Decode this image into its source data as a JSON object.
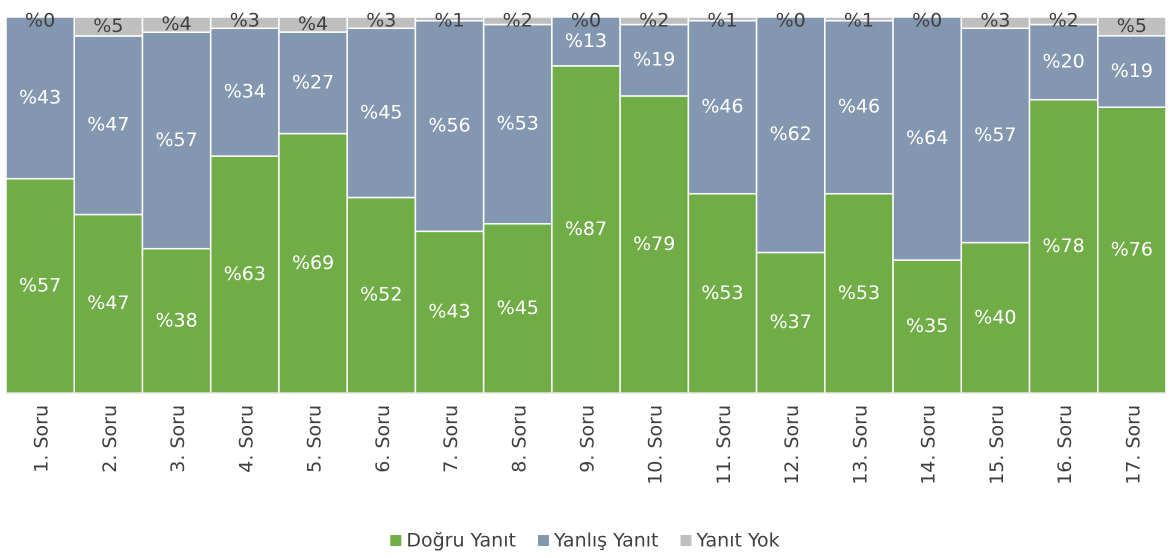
{
  "chart_data": {
    "type": "stacked-bar",
    "stacking": "percent",
    "categories": [
      "1. Soru",
      "2. Soru",
      "3. Soru",
      "4. Soru",
      "5. Soru",
      "6. Soru",
      "7. Soru",
      "8. Soru",
      "9. Soru",
      "10. Soru",
      "11. Soru",
      "12. Soru",
      "13. Soru",
      "14. Soru",
      "15. Soru",
      "16. Soru",
      "17. Soru"
    ],
    "ylim": [
      0,
      100
    ],
    "legend": "bottom",
    "series": [
      {
        "name": "Doğru Yanıt",
        "color": "#70ad47",
        "label_color": "#ffffff",
        "values": [
          57,
          47,
          38,
          63,
          69,
          52,
          43,
          45,
          87,
          79,
          53,
          37,
          53,
          35,
          40,
          78,
          76
        ],
        "value_labels": [
          "%57",
          "%47",
          "%38",
          "%63",
          "%69",
          "%52",
          "%43",
          "%45",
          "%87",
          "%79",
          "%53",
          "%37",
          "%53",
          "%35",
          "%40",
          "%78",
          "%76"
        ]
      },
      {
        "name": "Yanlış Yanıt",
        "color": "#8497b0",
        "label_color": "#ffffff",
        "values": [
          43,
          47,
          57,
          34,
          27,
          45,
          56,
          53,
          13,
          19,
          46,
          62,
          46,
          64,
          57,
          20,
          19
        ],
        "value_labels": [
          "%43",
          "%47",
          "%57",
          "%34",
          "%27",
          "%45",
          "%56",
          "%53",
          "%13",
          "%19",
          "%46",
          "%62",
          "%46",
          "%64",
          "%57",
          "%20",
          "%19"
        ]
      },
      {
        "name": "Yanıt Yok",
        "color": "#bfbfbf",
        "label_color": "#404040",
        "values": [
          0,
          5,
          4,
          3,
          4,
          3,
          1,
          2,
          0,
          2,
          1,
          0,
          1,
          0,
          3,
          2,
          5
        ],
        "value_labels": [
          "%0",
          "%5",
          "%4",
          "%3",
          "%4",
          "%3",
          "%1",
          "%2",
          "%0",
          "%2",
          "%1",
          "%0",
          "%1",
          "%0",
          "%3",
          "%2",
          "%5"
        ]
      }
    ]
  }
}
